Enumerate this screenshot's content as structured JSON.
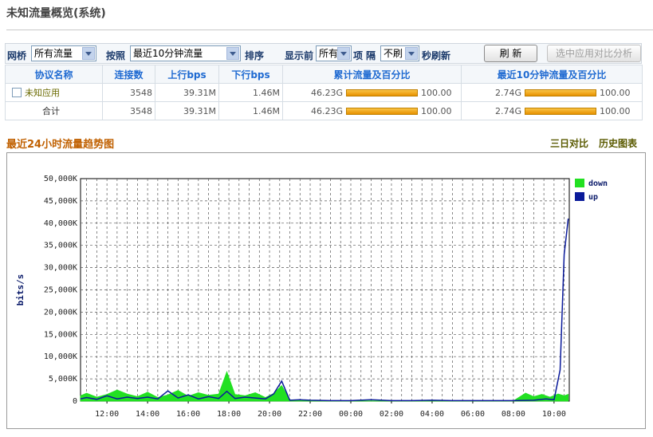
{
  "page": {
    "title": "未知流量概览(系统)"
  },
  "toolbar": {
    "bridge_label": "网桥",
    "bridge_value": "所有流量",
    "sort_by_label": "按照",
    "sort_by_value": "最近10分钟流量",
    "sort_label": "排序",
    "show_top_label": "显示前",
    "show_top_value": "所有",
    "items_label": "项",
    "interval_label": "隔",
    "interval_value": "不刷",
    "refresh_suffix": "秒刷新",
    "refresh_button": "刷 新",
    "compare_button": "选中应用对比分析"
  },
  "table": {
    "headers": [
      "协议名称",
      "连接数",
      "上行bps",
      "下行bps",
      "累计流量及百分比",
      "最近10分钟流量及百分比"
    ],
    "rows": [
      {
        "name": "未知应用",
        "connections": "3548",
        "up": "39.31M",
        "down": "1.46M",
        "total": "46.23G",
        "total_pct": "100.00",
        "total_fill": 1.0,
        "recent": "2.74G",
        "recent_pct": "100.00",
        "recent_fill": 1.0
      },
      {
        "name": "合计",
        "connections": "3548",
        "up": "39.31M",
        "down": "1.46M",
        "total": "46.23G",
        "total_pct": "100.00",
        "total_fill": 1.0,
        "recent": "2.74G",
        "recent_pct": "100.00",
        "recent_fill": 1.0
      }
    ]
  },
  "trend": {
    "title": "最近24小时流量趋势图",
    "link_compare": "三日对比",
    "link_history": "历史图表"
  },
  "chart_data": {
    "type": "area",
    "ylabel": "bits/s",
    "ylim": [
      0,
      50000
    ],
    "y_ticks": [
      "50,000K",
      "45,000K",
      "40,000K",
      "35,000K",
      "30,000K",
      "25,000K",
      "20,000K",
      "15,000K",
      "10,000K",
      "5,000K",
      "0"
    ],
    "x_ticks": [
      "12:00",
      "14:00",
      "16:00",
      "18:00",
      "20:00",
      "22:00",
      "00:00",
      "02:00",
      "04:00",
      "06:00",
      "08:00",
      "10:00"
    ],
    "grid": true,
    "legend_position": "right",
    "colors": {
      "down": "#22e022",
      "up": "#0a1a9a"
    },
    "series": [
      {
        "name": "down",
        "x": [
          10.7,
          11.0,
          11.5,
          12.0,
          12.5,
          13.0,
          13.5,
          14.0,
          14.5,
          15.0,
          15.5,
          16.0,
          16.5,
          17.0,
          17.5,
          17.9,
          18.3,
          18.8,
          19.3,
          19.8,
          20.2,
          20.6,
          21.0,
          21.5,
          22.0,
          23.0,
          24.0,
          25.0,
          26.0,
          27.0,
          28.0,
          29.0,
          30.0,
          31.0,
          32.0,
          32.6,
          33.0,
          33.4,
          33.8,
          34.2,
          34.5,
          34.7
        ],
        "values": [
          1200,
          1800,
          900,
          1500,
          2500,
          1600,
          1000,
          2000,
          800,
          1400,
          2400,
          1100,
          1900,
          1300,
          1600,
          6600,
          1500,
          1200,
          1900,
          800,
          1700,
          3500,
          300,
          200,
          100,
          100,
          50,
          50,
          50,
          50,
          50,
          50,
          50,
          50,
          50,
          1800,
          1000,
          1500,
          900,
          1600,
          1200,
          1500
        ]
      },
      {
        "name": "up",
        "x": [
          10.7,
          11.0,
          11.5,
          12.0,
          12.5,
          13.0,
          13.5,
          14.0,
          14.5,
          15.0,
          15.5,
          16.0,
          16.5,
          17.0,
          17.5,
          17.9,
          18.3,
          18.8,
          19.3,
          19.8,
          20.2,
          20.6,
          21.0,
          21.5,
          22.0,
          23.0,
          24.0,
          25.0,
          26.0,
          27.0,
          28.0,
          29.0,
          30.0,
          31.0,
          32.0,
          33.0,
          33.6,
          34.0,
          34.3,
          34.5,
          34.7
        ],
        "values": [
          500,
          800,
          400,
          1200,
          500,
          900,
          600,
          900,
          500,
          2300,
          700,
          1400,
          500,
          1000,
          600,
          2200,
          600,
          900,
          700,
          500,
          1600,
          4500,
          200,
          300,
          200,
          100,
          100,
          300,
          100,
          100,
          200,
          100,
          100,
          100,
          100,
          200,
          500,
          300,
          7000,
          33000,
          41000
        ]
      }
    ]
  }
}
